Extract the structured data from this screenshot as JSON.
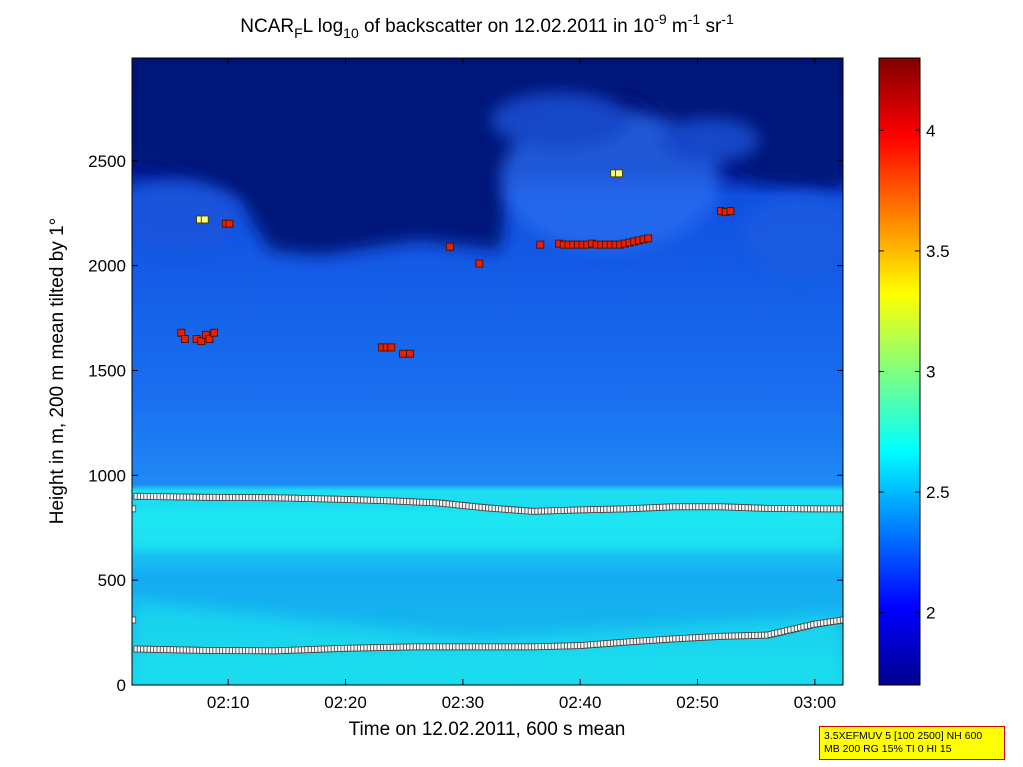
{
  "title": {
    "pre": "NCAR",
    "sub1": "F",
    "mid": "L log",
    "sub2": "10",
    "mid2": " of backscatter on 12.02.2011 in 10",
    "sup1": "-9",
    "mid3": " m",
    "sup2": "-1",
    "mid4": " sr",
    "sup3": "-1"
  },
  "info_box": {
    "line1": "3.5XEFMUV 5 [100 2500] NH 600",
    "line2": "MB 200 RG 15% TI 0 HI 15"
  },
  "chart_data": {
    "type": "heatmap",
    "xlabel": "Time on 12.02.2011, 600 s mean",
    "ylabel": "Height in m, 200 m mean tilted by 1°",
    "x_ticks": [
      "02:10",
      "02:20",
      "02:30",
      "02:40",
      "02:50",
      "03:00"
    ],
    "x_tick_minutes": [
      10,
      20,
      30,
      40,
      50,
      60
    ],
    "xlim_minutes": [
      1.8,
      62.4
    ],
    "ylim": [
      0,
      2990
    ],
    "y_ticks": [
      0,
      500,
      1000,
      1500,
      2000,
      2500
    ],
    "colorbar": {
      "lim": [
        1.7,
        4.3
      ],
      "ticks": [
        2,
        2.5,
        3,
        3.5,
        4
      ],
      "colormap": "jet"
    },
    "boundary_layer_top": {
      "x_minutes": [
        2,
        8,
        14,
        20,
        24,
        28,
        32,
        36,
        40,
        44,
        48,
        52,
        56,
        60,
        62.4
      ],
      "y": [
        900,
        895,
        893,
        885,
        878,
        868,
        845,
        828,
        835,
        840,
        850,
        850,
        842,
        840,
        840
      ]
    },
    "lower_layer": {
      "x_minutes": [
        2,
        8,
        14,
        20,
        26,
        32,
        36,
        40,
        44,
        48,
        52,
        56,
        60,
        62.4
      ],
      "y": [
        172,
        165,
        163,
        175,
        182,
        182,
        182,
        188,
        205,
        220,
        232,
        238,
        290,
        310
      ]
    },
    "cloud_points_red": [
      [
        6.0,
        1680
      ],
      [
        6.3,
        1650
      ],
      [
        7.3,
        1650
      ],
      [
        7.7,
        1640
      ],
      [
        8.1,
        1670
      ],
      [
        8.4,
        1650
      ],
      [
        8.8,
        1680
      ],
      [
        9.8,
        2200
      ],
      [
        10.1,
        2200
      ],
      [
        23.1,
        1610
      ],
      [
        23.5,
        1610
      ],
      [
        23.9,
        1610
      ],
      [
        24.9,
        1580
      ],
      [
        25.5,
        1580
      ],
      [
        28.9,
        2090
      ],
      [
        31.4,
        2010
      ],
      [
        36.6,
        2100
      ],
      [
        38.2,
        2105
      ],
      [
        38.6,
        2100
      ],
      [
        39.0,
        2100
      ],
      [
        39.4,
        2100
      ],
      [
        39.8,
        2100
      ],
      [
        40.2,
        2100
      ],
      [
        40.6,
        2100
      ],
      [
        41.0,
        2105
      ],
      [
        41.4,
        2100
      ],
      [
        41.8,
        2100
      ],
      [
        42.2,
        2100
      ],
      [
        42.6,
        2100
      ],
      [
        43.0,
        2100
      ],
      [
        43.4,
        2100
      ],
      [
        43.8,
        2105
      ],
      [
        44.2,
        2110
      ],
      [
        44.6,
        2115
      ],
      [
        45.0,
        2120
      ],
      [
        45.4,
        2125
      ],
      [
        45.8,
        2130
      ],
      [
        52.0,
        2260
      ],
      [
        52.4,
        2255
      ],
      [
        52.8,
        2260
      ]
    ],
    "cloud_points_yellow": [
      [
        7.6,
        2220
      ],
      [
        8.0,
        2220
      ],
      [
        42.9,
        2440
      ],
      [
        43.3,
        2440
      ]
    ]
  }
}
